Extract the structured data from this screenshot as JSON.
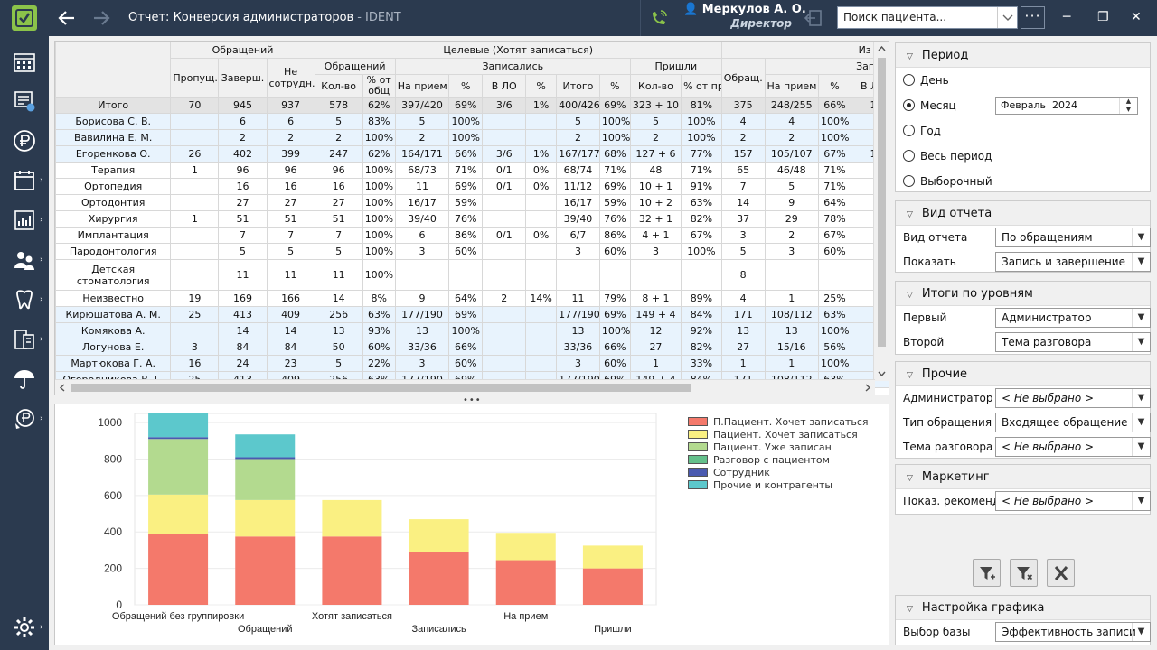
{
  "window": {
    "title": "Отчет: Конверсия администраторов",
    "app": "- IDENT"
  },
  "user": {
    "name": "Меркулов А. О.",
    "role": "Директор"
  },
  "search": {
    "placeholder": "Поиск пациента..."
  },
  "colors": {
    "titlebar": "#2b3a4f",
    "accent": "#8bc34a"
  },
  "sidebar": {
    "icons": [
      "schedule-icon",
      "tasks-icon",
      "finance-icon",
      "reports-icon",
      "analytics-icon",
      "patients-icon",
      "dental-icon",
      "devices-icon",
      "insurance-icon",
      "payments-icon",
      "settings-icon"
    ]
  },
  "grid": {
    "group_headers": {
      "appeals": "Обращений",
      "target": "Целевые (Хотят записаться)",
      "of_them": "Из них"
    },
    "sub_headers": {
      "appeals": "Обращений",
      "recorded": "Записались",
      "came": "Пришли",
      "appeals_short": "Обращ.",
      "recorded2": "Записа"
    },
    "columns": [
      "Пропущ.",
      "Заверш.",
      "Не сотрудн.",
      "Кол-во",
      "% от общ",
      "На прием",
      "%",
      "В ЛО",
      "%",
      "Итого",
      "%",
      "Кол-во",
      "% от пр.",
      "",
      "На прием",
      "%",
      "В ЛО"
    ],
    "rows": [
      {
        "type": "total",
        "c": [
          "Итого",
          "70",
          "945",
          "937",
          "578",
          "62%",
          "397/420",
          "69%",
          "3/6",
          "1%",
          "400/426",
          "69%",
          "323 + 10",
          "81%",
          "375",
          "248/255",
          "66%",
          "1"
        ]
      },
      {
        "type": "admin",
        "c": [
          "Борисова С. В.",
          "",
          "6",
          "6",
          "5",
          "83%",
          "5",
          "100%",
          "",
          "",
          "5",
          "100%",
          "5",
          "100%",
          "4",
          "4",
          "100%",
          ""
        ]
      },
      {
        "type": "admin",
        "c": [
          "Вавилина Е. М.",
          "",
          "2",
          "2",
          "2",
          "100%",
          "2",
          "100%",
          "",
          "",
          "2",
          "100%",
          "2",
          "100%",
          "2",
          "2",
          "100%",
          ""
        ]
      },
      {
        "type": "admin",
        "c": [
          "Егоренкова О.",
          "26",
          "402",
          "399",
          "247",
          "62%",
          "164/171",
          "66%",
          "3/6",
          "1%",
          "167/177",
          "68%",
          "127 + 6",
          "77%",
          "157",
          "105/107",
          "67%",
          "1"
        ]
      },
      {
        "type": "sub",
        "c": [
          "Терапия",
          "1",
          "96",
          "96",
          "96",
          "100%",
          "68/73",
          "71%",
          "0/1",
          "0%",
          "68/74",
          "71%",
          "48",
          "71%",
          "65",
          "46/48",
          "71%",
          ""
        ]
      },
      {
        "type": "sub",
        "c": [
          "Ортопедия",
          "",
          "16",
          "16",
          "16",
          "100%",
          "11",
          "69%",
          "0/1",
          "0%",
          "11/12",
          "69%",
          "10 + 1",
          "91%",
          "7",
          "5",
          "71%",
          ""
        ]
      },
      {
        "type": "sub",
        "c": [
          "Ортодонтия",
          "",
          "27",
          "27",
          "27",
          "100%",
          "16/17",
          "59%",
          "",
          "",
          "16/17",
          "59%",
          "10 + 2",
          "63%",
          "14",
          "9",
          "64%",
          ""
        ]
      },
      {
        "type": "sub",
        "c": [
          "Хирургия",
          "1",
          "51",
          "51",
          "51",
          "100%",
          "39/40",
          "76%",
          "",
          "",
          "39/40",
          "76%",
          "32 + 1",
          "82%",
          "37",
          "29",
          "78%",
          ""
        ]
      },
      {
        "type": "sub",
        "c": [
          "Имплантация",
          "",
          "7",
          "7",
          "7",
          "100%",
          "6",
          "86%",
          "0/1",
          "0%",
          "6/7",
          "86%",
          "4 + 1",
          "67%",
          "3",
          "2",
          "67%",
          ""
        ]
      },
      {
        "type": "sub",
        "c": [
          "Пародонтология",
          "",
          "5",
          "5",
          "5",
          "100%",
          "3",
          "60%",
          "",
          "",
          "3",
          "60%",
          "3",
          "100%",
          "5",
          "3",
          "60%",
          ""
        ]
      },
      {
        "type": "sub2",
        "c": [
          "Детская стоматология",
          "",
          "11",
          "11",
          "11",
          "100%",
          "",
          "",
          "",
          "",
          "",
          "",
          "",
          "",
          "8",
          "",
          "",
          ""
        ]
      },
      {
        "type": "sub",
        "c": [
          "Неизвестно",
          "19",
          "169",
          "166",
          "14",
          "8%",
          "9",
          "64%",
          "2",
          "14%",
          "11",
          "79%",
          "8 + 1",
          "89%",
          "4",
          "1",
          "25%",
          ""
        ]
      },
      {
        "type": "admin",
        "c": [
          "Кирюшатова А. М.",
          "25",
          "413",
          "409",
          "256",
          "63%",
          "177/190",
          "69%",
          "",
          "",
          "177/190",
          "69%",
          "149 + 4",
          "84%",
          "171",
          "108/112",
          "63%",
          ""
        ]
      },
      {
        "type": "admin",
        "c": [
          "Комякова А.",
          "",
          "14",
          "14",
          "13",
          "93%",
          "13",
          "100%",
          "",
          "",
          "13",
          "100%",
          "12",
          "92%",
          "13",
          "13",
          "100%",
          ""
        ]
      },
      {
        "type": "admin",
        "c": [
          "Логунова Е.",
          "3",
          "84",
          "84",
          "50",
          "60%",
          "33/36",
          "66%",
          "",
          "",
          "33/36",
          "66%",
          "27",
          "82%",
          "27",
          "15/16",
          "56%",
          ""
        ]
      },
      {
        "type": "admin",
        "c": [
          "Мартюкова Г. А.",
          "16",
          "24",
          "23",
          "5",
          "22%",
          "3",
          "60%",
          "",
          "",
          "3",
          "60%",
          "1",
          "33%",
          "1",
          "1",
          "100%",
          ""
        ]
      },
      {
        "type": "admin",
        "c": [
          "Огородникова В. Г.",
          "25",
          "413",
          "409",
          "256",
          "63%",
          "177/190",
          "69%",
          "",
          "",
          "177/190",
          "69%",
          "149 + 4",
          "84%",
          "171",
          "108/112",
          "63%",
          ""
        ]
      }
    ]
  },
  "chart_data": {
    "type": "bar",
    "stacked": true,
    "categories": [
      "Обращений без группировки",
      "Обращений",
      "Хотят записаться",
      "Записались",
      "На прием",
      "Пришли"
    ],
    "series": [
      {
        "name": "П.Пациент. Хочет записаться",
        "color": "#f4796b",
        "values": [
          390,
          375,
          375,
          290,
          245,
          200
        ]
      },
      {
        "name": "Пациент. Хочет записаться",
        "color": "#faf082",
        "values": [
          215,
          200,
          200,
          180,
          150,
          125
        ]
      },
      {
        "name": "Пациент. Уже записан",
        "color": "#b3da8f",
        "values": [
          305,
          225,
          0,
          0,
          0,
          0
        ]
      },
      {
        "name": "Разговор с пациентом",
        "color": "#64c08b",
        "values": [
          0,
          0,
          0,
          0,
          0,
          0
        ]
      },
      {
        "name": "Сотрудник",
        "color": "#4a5ab0",
        "values": [
          10,
          10,
          0,
          0,
          0,
          0
        ]
      },
      {
        "name": "Прочие и контрагенты",
        "color": "#5cc8cc",
        "values": [
          130,
          125,
          0,
          0,
          0,
          0
        ]
      }
    ],
    "yticks": [
      0,
      200,
      400,
      600,
      800,
      1000
    ],
    "ylim": [
      0,
      1050
    ],
    "grid": true,
    "legend": "top-right"
  },
  "panels": {
    "period": {
      "title": "Период",
      "options": [
        "День",
        "Месяц",
        "Год",
        "Весь период",
        "Выборочный"
      ],
      "selected": "Месяц",
      "month_value": "Февраль  2024"
    },
    "view": {
      "title": "Вид отчета",
      "view_label": "Вид отчета",
      "view_value": "По обращениям",
      "show_label": "Показать",
      "show_value": "Запись и завершение"
    },
    "levels": {
      "title": "Итоги по уровням",
      "first_label": "Первый",
      "first_value": "Администратор",
      "second_label": "Второй",
      "second_value": "Тема разговора"
    },
    "other": {
      "title": "Прочие",
      "admin_label": "Администратор",
      "admin_value": "< Не выбрано >",
      "type_label": "Тип обращения",
      "type_value": "Входящее обращение",
      "topic_label": "Тема разговора",
      "topic_value": "< Не выбрано >"
    },
    "marketing": {
      "title": "Маркетинг",
      "rec_label": "Показ. рекоменд.",
      "rec_value": "< Не выбрано >"
    },
    "chart_settings": {
      "title": "Настройка графика",
      "base_label": "Выбор базы",
      "base_value": "Эффективность записи"
    }
  }
}
